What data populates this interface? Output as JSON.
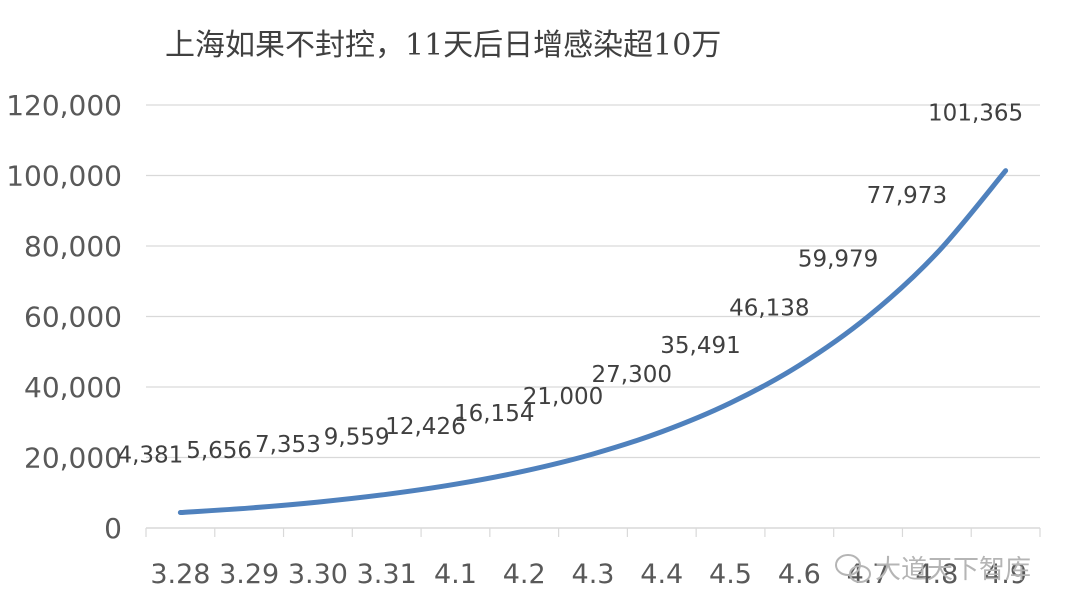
{
  "chart_data": {
    "type": "line",
    "title": "上海如果不封控，11天后日增感染超10万",
    "categories": [
      "3.28",
      "3.29",
      "3.30",
      "3.31",
      "4.1",
      "4.2",
      "4.3",
      "4.4",
      "4.5",
      "4.6",
      "4.7",
      "4.8",
      "4.9"
    ],
    "series": [
      {
        "values": [
          4381,
          5656,
          7353,
          9559,
          12426,
          16154,
          21000,
          27300,
          35491,
          46138,
          59979,
          77973,
          101365
        ],
        "labels": [
          "4,381",
          "5,656",
          "7,353",
          "9,559",
          "12,426",
          "16,154",
          "21,000",
          "27,300",
          "35,491",
          "46,138",
          "59,979",
          "77,973",
          "101,365"
        ],
        "color": "#4f81bd"
      }
    ],
    "ylim": [
      0,
      120000
    ],
    "yticks": [
      "0",
      "20,000",
      "40,000",
      "60,000",
      "80,000",
      "100,000",
      "120,000"
    ],
    "xlabel": "",
    "ylabel": "",
    "grid": true,
    "legend": "none"
  },
  "watermark": {
    "text": "大道天下智库",
    "icon": "wechat-icon"
  },
  "colors": {
    "series": "#4f81bd",
    "grid": "#d9d9d9",
    "text": "#595959"
  }
}
